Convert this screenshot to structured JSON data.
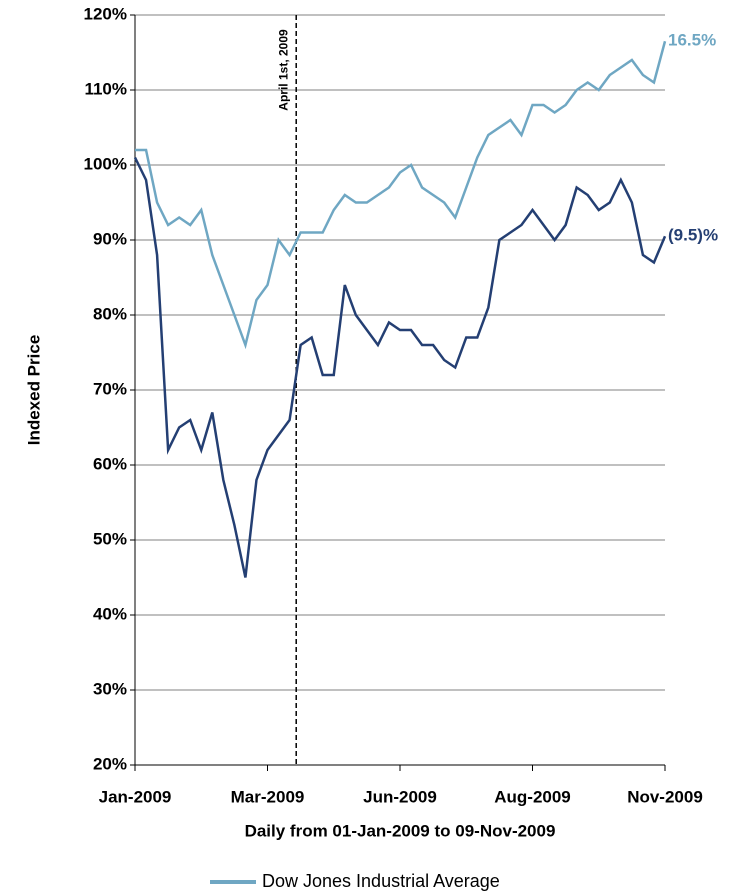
{
  "chart_data": {
    "type": "line",
    "x_label": "Daily from 01-Jan-2009 to 09-Nov-2009",
    "y_label": "Indexed Price",
    "categories": [
      "Jan-2009",
      null,
      null,
      null,
      null,
      null,
      null,
      null,
      null,
      null,
      null,
      null,
      "Mar-2009",
      null,
      null,
      null,
      null,
      null,
      null,
      null,
      null,
      null,
      null,
      null,
      "Jun-2009",
      null,
      null,
      null,
      null,
      null,
      null,
      null,
      null,
      null,
      null,
      null,
      "Aug-2009",
      null,
      null,
      null,
      null,
      null,
      null,
      null,
      null,
      null,
      null,
      null,
      "Nov-2009"
    ],
    "series": [
      {
        "name": "Dow Jones Industrial Average",
        "color": "#6fa7c3",
        "end_label": "16.5%",
        "values": [
          102,
          102,
          95,
          92,
          93,
          92,
          94,
          88,
          84,
          80,
          76,
          82,
          84,
          90,
          88,
          91,
          91,
          91,
          94,
          96,
          95,
          95,
          96,
          97,
          99,
          100,
          97,
          96,
          95,
          93,
          97,
          101,
          104,
          105,
          106,
          104,
          108,
          108,
          107,
          108,
          110,
          111,
          110,
          112,
          113,
          114,
          112,
          111,
          116.5
        ]
      },
      {
        "color": "#243f73",
        "end_label": "(9.5)%",
        "values": [
          101,
          98,
          88,
          62,
          65,
          66,
          62,
          67,
          58,
          52,
          45,
          58,
          62,
          64,
          66,
          76,
          77,
          72,
          72,
          84,
          80,
          78,
          76,
          79,
          78,
          78,
          76,
          76,
          74,
          73,
          77,
          77,
          81,
          90,
          91,
          92,
          94,
          92,
          90,
          92,
          97,
          96,
          94,
          95,
          98,
          95,
          88,
          87,
          90.5
        ]
      }
    ],
    "annotations": [
      {
        "text": "April 1st, 2009",
        "x": 14.6
      }
    ],
    "ylim": [
      20,
      120
    ],
    "yticks": [
      {
        "value": 20,
        "label": "20%"
      },
      {
        "value": 30,
        "label": "30%"
      },
      {
        "value": 40,
        "label": "40%"
      },
      {
        "value": 50,
        "label": "50%"
      },
      {
        "value": 60,
        "label": "60%"
      },
      {
        "value": 70,
        "label": "70%"
      },
      {
        "value": 80,
        "label": "80%"
      },
      {
        "value": 90,
        "label": "90%"
      },
      {
        "value": 100,
        "label": "100%"
      },
      {
        "value": 110,
        "label": "110%"
      },
      {
        "value": 120,
        "label": "120%"
      }
    ],
    "grid": true
  }
}
